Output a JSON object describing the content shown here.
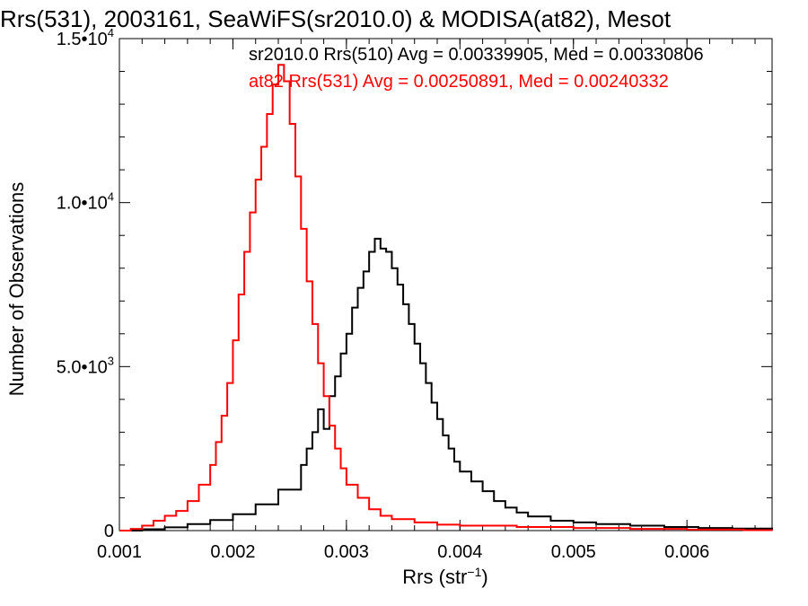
{
  "chart_data": {
    "type": "line",
    "title": "Rrs(531), 2003161, SeaWiFS(sr2010.0) & MODISA(at82), Mesot",
    "xlabel": "Rrs (str",
    "xlabel_sup": "−1",
    "xlabel_close": ")",
    "ylabel": "Number of Observations",
    "xlim": [
      0.001,
      0.00675
    ],
    "ylim": [
      0,
      15000
    ],
    "x_ticks": [
      {
        "value": 0.001,
        "label": "0.001"
      },
      {
        "value": 0.002,
        "label": "0.002"
      },
      {
        "value": 0.003,
        "label": "0.003"
      },
      {
        "value": 0.004,
        "label": "0.004"
      },
      {
        "value": 0.005,
        "label": "0.005"
      },
      {
        "value": 0.006,
        "label": "0.006"
      }
    ],
    "y_ticks": [
      {
        "value": 0,
        "label": "0",
        "sup": ""
      },
      {
        "value": 5000,
        "label": "5.0•10",
        "sup": "3"
      },
      {
        "value": 10000,
        "label": "1.0•10",
        "sup": "4"
      },
      {
        "value": 15000,
        "label": "1.5•10",
        "sup": "4"
      }
    ],
    "legend_position": "top-right",
    "series": [
      {
        "name": "sr2010.0 Rrs(510) Avg = 0.00339905, Med = 0.00330806",
        "color": "#000000",
        "points": [
          [
            0.001,
            0
          ],
          [
            0.0012,
            40
          ],
          [
            0.0014,
            100
          ],
          [
            0.0016,
            200
          ],
          [
            0.0018,
            320
          ],
          [
            0.002,
            500
          ],
          [
            0.0022,
            800
          ],
          [
            0.0024,
            1250
          ],
          [
            0.0026,
            2000
          ],
          [
            0.00265,
            2500
          ],
          [
            0.0027,
            3000
          ],
          [
            0.00275,
            3700
          ],
          [
            0.0028,
            3100
          ],
          [
            0.00285,
            4100
          ],
          [
            0.0029,
            4700
          ],
          [
            0.00295,
            5400
          ],
          [
            0.003,
            6000
          ],
          [
            0.00305,
            6800
          ],
          [
            0.0031,
            7400
          ],
          [
            0.00315,
            7900
          ],
          [
            0.0032,
            8500
          ],
          [
            0.00325,
            8900
          ],
          [
            0.0033,
            8600
          ],
          [
            0.00335,
            8500
          ],
          [
            0.0034,
            8000
          ],
          [
            0.00345,
            7500
          ],
          [
            0.0035,
            6900
          ],
          [
            0.00355,
            6300
          ],
          [
            0.0036,
            5700
          ],
          [
            0.00365,
            5100
          ],
          [
            0.0037,
            4500
          ],
          [
            0.00375,
            3900
          ],
          [
            0.0038,
            3400
          ],
          [
            0.00385,
            2900
          ],
          [
            0.0039,
            2500
          ],
          [
            0.00395,
            2100
          ],
          [
            0.004,
            1800
          ],
          [
            0.0041,
            1500
          ],
          [
            0.0042,
            1200
          ],
          [
            0.0043,
            900
          ],
          [
            0.0044,
            700
          ],
          [
            0.0045,
            550
          ],
          [
            0.0046,
            430
          ],
          [
            0.0048,
            300
          ],
          [
            0.005,
            250
          ],
          [
            0.0052,
            200
          ],
          [
            0.0055,
            150
          ],
          [
            0.0058,
            110
          ],
          [
            0.0061,
            80
          ],
          [
            0.0064,
            60
          ],
          [
            0.00675,
            40
          ]
        ]
      },
      {
        "name": "at82 Rrs(531) Avg = 0.00250891, Med = 0.00240332",
        "color": "#ff0000",
        "points": [
          [
            0.001,
            0
          ],
          [
            0.0011,
            50
          ],
          [
            0.0012,
            150
          ],
          [
            0.0013,
            300
          ],
          [
            0.0014,
            450
          ],
          [
            0.0015,
            600
          ],
          [
            0.0016,
            900
          ],
          [
            0.0017,
            1400
          ],
          [
            0.0018,
            2000
          ],
          [
            0.00185,
            2700
          ],
          [
            0.0019,
            3500
          ],
          [
            0.00195,
            4500
          ],
          [
            0.002,
            5800
          ],
          [
            0.00205,
            7200
          ],
          [
            0.0021,
            8500
          ],
          [
            0.00215,
            9700
          ],
          [
            0.0022,
            10700
          ],
          [
            0.00225,
            11700
          ],
          [
            0.0023,
            12700
          ],
          [
            0.00235,
            13600
          ],
          [
            0.0024,
            14200
          ],
          [
            0.00245,
            13700
          ],
          [
            0.0025,
            12400
          ],
          [
            0.00255,
            10800
          ],
          [
            0.0026,
            9200
          ],
          [
            0.00265,
            7600
          ],
          [
            0.0027,
            6300
          ],
          [
            0.00275,
            5100
          ],
          [
            0.0028,
            4100
          ],
          [
            0.00285,
            3200
          ],
          [
            0.0029,
            2500
          ],
          [
            0.00295,
            1900
          ],
          [
            0.003,
            1400
          ],
          [
            0.0031,
            1000
          ],
          [
            0.0032,
            650
          ],
          [
            0.0033,
            450
          ],
          [
            0.0034,
            350
          ],
          [
            0.0036,
            250
          ],
          [
            0.0038,
            180
          ],
          [
            0.004,
            150
          ],
          [
            0.0045,
            110
          ],
          [
            0.005,
            80
          ],
          [
            0.0055,
            50
          ],
          [
            0.006,
            30
          ],
          [
            0.0065,
            15
          ],
          [
            0.00675,
            10
          ]
        ]
      }
    ]
  }
}
